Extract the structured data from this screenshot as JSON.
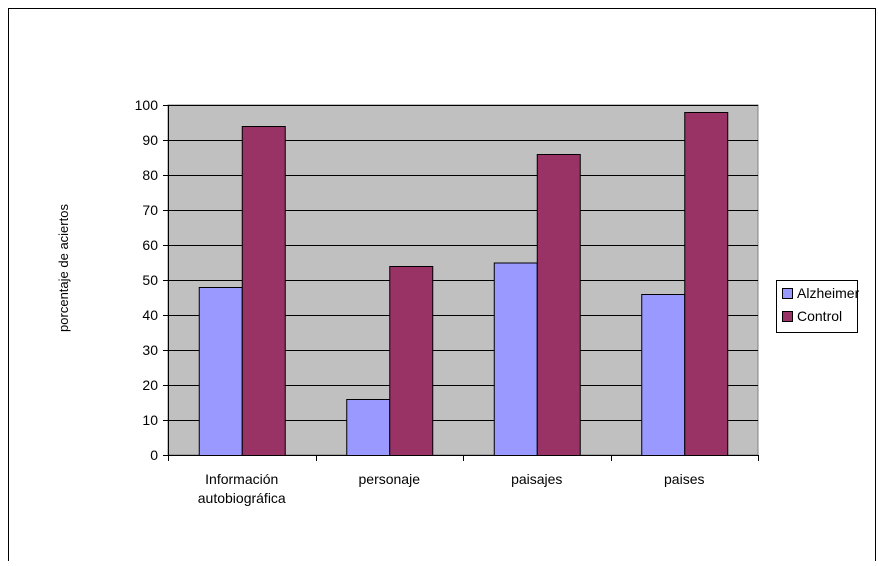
{
  "chart_data": {
    "type": "bar",
    "title": "",
    "xlabel": "",
    "ylabel": "porcentaje de aciertos",
    "categories": [
      [
        "Información",
        "autobiográfica"
      ],
      [
        "personaje"
      ],
      [
        "paisajes"
      ],
      [
        "paises"
      ]
    ],
    "series": [
      {
        "name": "Alzheimer",
        "values": [
          48,
          16,
          55,
          46
        ],
        "color": "#9999ff"
      },
      {
        "name": "Control",
        "values": [
          94,
          54,
          86,
          98
        ],
        "color": "#993366"
      }
    ],
    "ylim": [
      0,
      100
    ],
    "yticks": [
      0,
      10,
      20,
      30,
      40,
      50,
      60,
      70,
      80,
      90,
      100
    ],
    "grid": true,
    "plot_background": "#c0c0c0",
    "legend_position": "right"
  }
}
